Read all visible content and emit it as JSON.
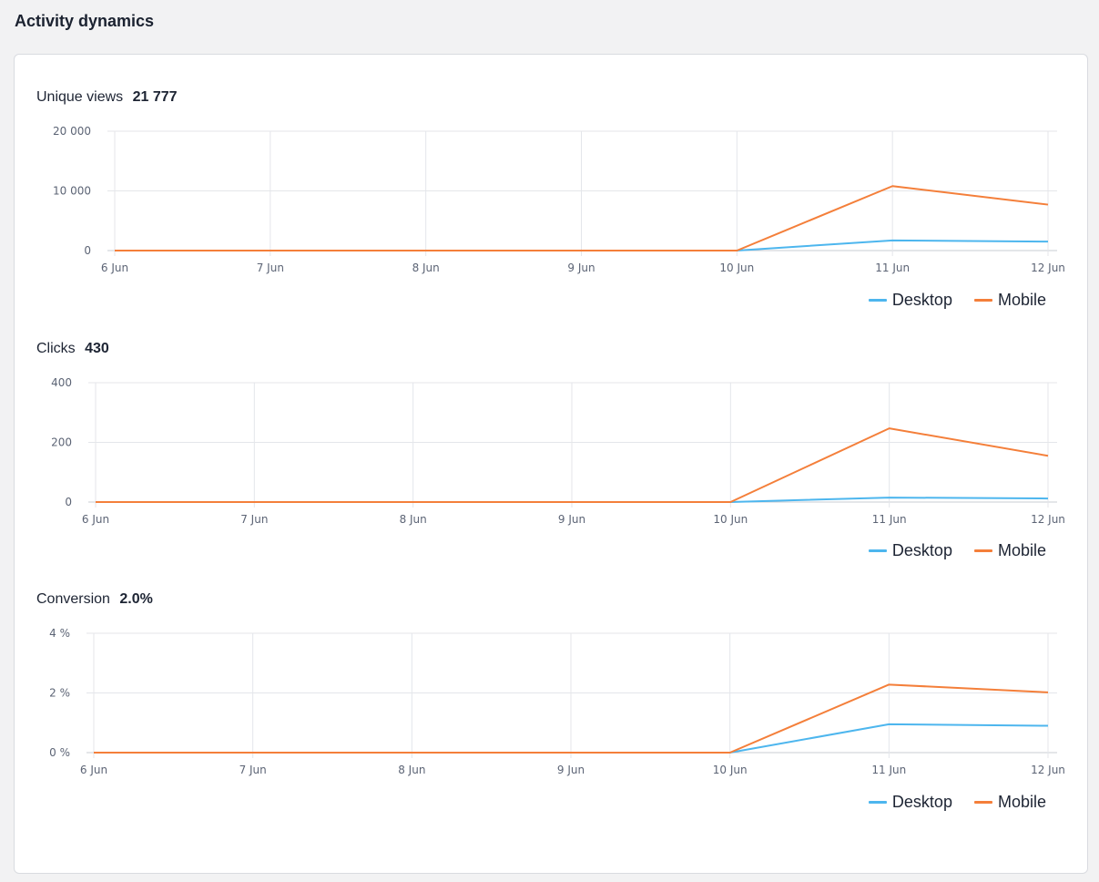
{
  "page": {
    "title": "Activity dynamics"
  },
  "colors": {
    "desktop": "#4db6ee",
    "mobile": "#f47f3a",
    "grid": "#e4e6ea",
    "axis": "#c9ccd3"
  },
  "charts": [
    {
      "label": "Unique views",
      "total": "21 777"
    },
    {
      "label": "Clicks",
      "total": "430"
    },
    {
      "label": "Conversion",
      "total": "2.0%"
    }
  ],
  "chart_data": [
    {
      "type": "line",
      "title": "Unique views",
      "categories": [
        "6 Jun",
        "7 Jun",
        "8 Jun",
        "9 Jun",
        "10 Jun",
        "11 Jun",
        "12 Jun"
      ],
      "y_ticks": [
        "0",
        "10 000",
        "20 000"
      ],
      "ylim": [
        0,
        20000
      ],
      "series": [
        {
          "name": "Desktop",
          "color": "#4db6ee",
          "values": [
            0,
            0,
            0,
            0,
            0,
            1700,
            1500
          ]
        },
        {
          "name": "Mobile",
          "color": "#f47f3a",
          "values": [
            0,
            0,
            0,
            0,
            0,
            10800,
            7700
          ]
        }
      ],
      "grid": true,
      "legend": "bottom-right"
    },
    {
      "type": "line",
      "title": "Clicks",
      "categories": [
        "6 Jun",
        "7 Jun",
        "8 Jun",
        "9 Jun",
        "10 Jun",
        "11 Jun",
        "12 Jun"
      ],
      "y_ticks": [
        "0",
        "200",
        "400"
      ],
      "ylim": [
        0,
        400
      ],
      "series": [
        {
          "name": "Desktop",
          "color": "#4db6ee",
          "values": [
            0,
            0,
            0,
            0,
            0,
            15,
            12
          ]
        },
        {
          "name": "Mobile",
          "color": "#f47f3a",
          "values": [
            0,
            0,
            0,
            0,
            0,
            247,
            155
          ]
        }
      ],
      "grid": true,
      "legend": "bottom-right"
    },
    {
      "type": "line",
      "title": "Conversion",
      "categories": [
        "6 Jun",
        "7 Jun",
        "8 Jun",
        "9 Jun",
        "10 Jun",
        "11 Jun",
        "12 Jun"
      ],
      "y_ticks": [
        "0 %",
        "2 %",
        "4 %"
      ],
      "ylim": [
        0,
        4
      ],
      "series": [
        {
          "name": "Desktop",
          "color": "#4db6ee",
          "values": [
            0,
            0,
            0,
            0,
            0,
            0.95,
            0.9
          ]
        },
        {
          "name": "Mobile",
          "color": "#f47f3a",
          "values": [
            0,
            0,
            0,
            0,
            0,
            2.28,
            2.02
          ]
        }
      ],
      "grid": true,
      "legend": "bottom-right"
    }
  ]
}
